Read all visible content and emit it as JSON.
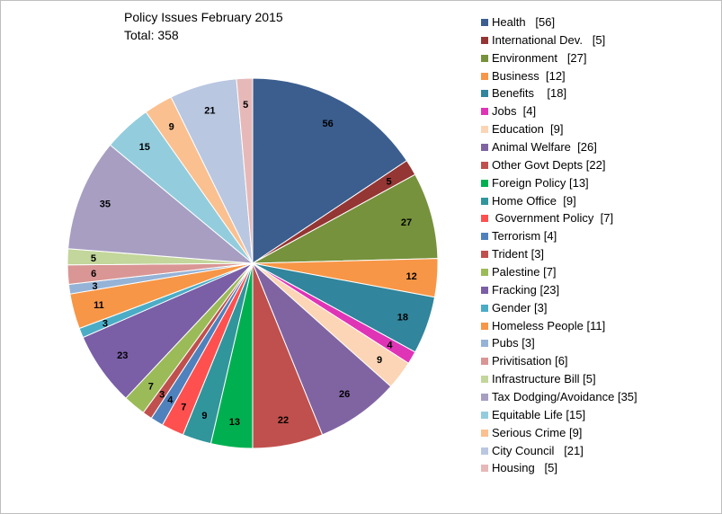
{
  "chart_data": {
    "type": "pie",
    "title": "Policy Issues  February 2015",
    "subtitle": "Total: 358",
    "legend_position": "right",
    "slices": [
      {
        "name": "Health",
        "legend_label": "Health   [56]",
        "value": 56,
        "color": "#3b5e8f"
      },
      {
        "name": "International Dev.",
        "legend_label": "International Dev.   [5]",
        "value": 5,
        "color": "#943634"
      },
      {
        "name": "Environment",
        "legend_label": "Environment   [27]",
        "value": 27,
        "color": "#76923c"
      },
      {
        "name": "Business",
        "legend_label": "Business  [12]",
        "value": 12,
        "color": "#f79646"
      },
      {
        "name": "Benefits",
        "legend_label": "Benefits    [18]",
        "value": 18,
        "color": "#31859c"
      },
      {
        "name": "Jobs",
        "legend_label": "Jobs  [4]",
        "value": 4,
        "color": "#e034b6"
      },
      {
        "name": "Education",
        "legend_label": "Education  [9]",
        "value": 9,
        "color": "#fbd5b5"
      },
      {
        "name": "Animal Welfare",
        "legend_label": "Animal Welfare  [26]",
        "value": 26,
        "color": "#8064a2"
      },
      {
        "name": "Other Govt Depts",
        "legend_label": "Other Govt Depts [22]",
        "value": 22,
        "color": "#c0504d"
      },
      {
        "name": "Foreign Policy",
        "legend_label": "Foreign Policy [13]",
        "value": 13,
        "color": "#00b050"
      },
      {
        "name": "Home Office",
        "legend_label": "Home Office  [9]",
        "value": 9,
        "color": "#31959c"
      },
      {
        "name": "Government Policy",
        "legend_label": " Government Policy  [7]",
        "value": 7,
        "color": "#ff5050"
      },
      {
        "name": "Terrorism",
        "legend_label": "Terrorism [4]",
        "value": 4,
        "color": "#4f81bd"
      },
      {
        "name": "Trident",
        "legend_label": "Trident [3]",
        "value": 3,
        "color": "#c0504d"
      },
      {
        "name": "Palestine",
        "legend_label": "Palestine [7]",
        "value": 7,
        "color": "#9bbb59"
      },
      {
        "name": "Fracking",
        "legend_label": "Fracking [23]",
        "value": 23,
        "color": "#7a5ea6"
      },
      {
        "name": "Gender",
        "legend_label": "Gender [3]",
        "value": 3,
        "color": "#4bacc6"
      },
      {
        "name": "Homeless People",
        "legend_label": "Homeless People [11]",
        "value": 11,
        "color": "#f79646"
      },
      {
        "name": "Pubs",
        "legend_label": "Pubs [3]",
        "value": 3,
        "color": "#95b3d7"
      },
      {
        "name": "Privitisation",
        "legend_label": "Privitisation [6]",
        "value": 6,
        "color": "#d99694"
      },
      {
        "name": "Infrastructure Bill",
        "legend_label": "Infrastructure Bill [5]",
        "value": 5,
        "color": "#c3d69b"
      },
      {
        "name": "Tax Dodging/Avoidance",
        "legend_label": "Tax Dodging/Avoidance [35]",
        "value": 35,
        "color": "#a79ec2"
      },
      {
        "name": "Equitable Life",
        "legend_label": "Equitable Life [15]",
        "value": 15,
        "color": "#93cddd"
      },
      {
        "name": "Serious Crime",
        "legend_label": "Serious Crime [9]",
        "value": 9,
        "color": "#fac090"
      },
      {
        "name": "City Council",
        "legend_label": "City Council   [21]",
        "value": 21,
        "color": "#b9c7e1"
      },
      {
        "name": "Housing",
        "legend_label": "Housing   [5]",
        "value": 5,
        "color": "#e6b9b8"
      }
    ]
  }
}
